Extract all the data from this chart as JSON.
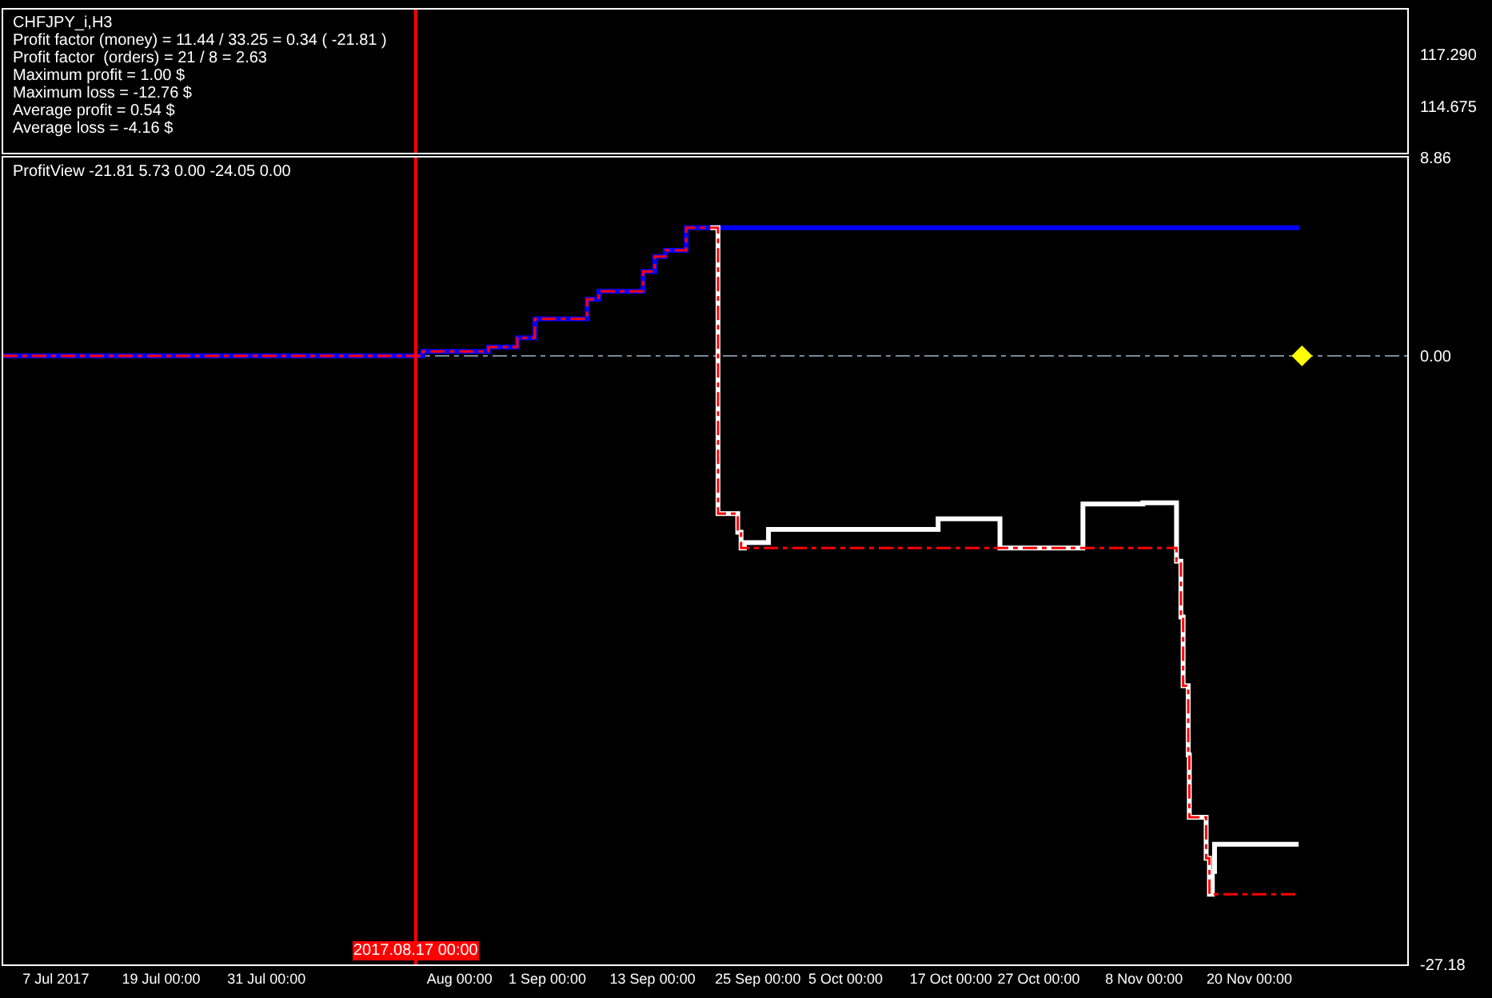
{
  "chart_data": [
    {
      "type": "line",
      "title": "CHFJPY_i,H3",
      "annotations": [
        "Profit factor (money) = 11.44 / 33.25 = 0.34 ( -21.81 )",
        "Profit factor  (orders) = 21 / 8 = 2.63",
        "Maximum profit = 1.00 $",
        "Maximum loss = -12.76 $",
        "Average profit = 0.54 $",
        "Average loss = -4.16 $"
      ],
      "ylim": [
        112.37,
        119.51
      ],
      "yticks": [
        {
          "value": 117.29,
          "label": "117.290"
        },
        114.675
      ],
      "xlim": [
        "2017-07-01T00:00",
        "2017-12-08T00:00"
      ],
      "tick_labels": "y",
      "ref_lines": [
        {
          "axis": "x",
          "value": "2017-08-17T00:00",
          "color": "#ff0000"
        }
      ]
    },
    {
      "type": "step",
      "title": "ProfitView -21.81 5.73 0.00 -24.05 0.00",
      "xlim": [
        "2017-07-01T00:00",
        "2017-12-08T00:00"
      ],
      "xticks": [
        {
          "value": "2017-07-07T00:00",
          "label": "7 Jul 2017"
        },
        {
          "value": "2017-07-19T00:00",
          "label": "19 Jul 00:00"
        },
        {
          "value": "2017-07-31T00:00",
          "label": "31 Jul 00:00"
        },
        {
          "value": "2017-08-22T00:00",
          "label": "Aug 00:00"
        },
        {
          "value": "2017-09-01T00:00",
          "label": "1 Sep 00:00"
        },
        {
          "value": "2017-09-13T00:00",
          "label": "13 Sep 00:00"
        },
        {
          "value": "2017-09-25T00:00",
          "label": "25 Sep 00:00"
        },
        {
          "value": "2017-10-05T00:00",
          "label": "5 Oct 00:00"
        },
        {
          "value": "2017-10-17T00:00",
          "label": "17 Oct 00:00"
        },
        {
          "value": "2017-10-27T00:00",
          "label": "27 Oct 00:00"
        },
        {
          "value": "2017-11-08T00:00",
          "label": "8 Nov 00:00"
        },
        {
          "value": "2017-11-20T00:00",
          "label": "20 Nov 00:00"
        }
      ],
      "ylim": [
        -27.18,
        8.86
      ],
      "yticks": [
        8.86,
        {
          "value": 0,
          "label": "0.00"
        },
        -27.18
      ],
      "ref_lines": [
        {
          "axis": "x",
          "value": "2017-08-17T00:00",
          "label": "2017.08.17 00:00",
          "color": "#ff0000"
        },
        {
          "axis": "y",
          "value": 0,
          "color": "#778899",
          "line_style": "dashed"
        }
      ],
      "series": [
        {
          "color": "#0000ff",
          "line_style": "solid",
          "x": [
            "2017-07-01T00:00",
            "2017-08-17T19:00",
            "2017-08-25T07:00",
            "2017-08-28T14:00",
            "2017-08-30T14:00",
            "2017-09-05T13:00",
            "2017-09-06T21:00",
            "2017-09-11T22:00",
            "2017-09-13T06:00",
            "2017-09-14T11:00",
            "2017-09-16T20:00",
            "2017-11-25T18:00"
          ],
          "values": [
            0,
            0.2,
            0.4,
            0.81,
            1.66,
            2.53,
            2.89,
            3.77,
            4.44,
            4.72,
            5.73,
            5.73
          ]
        },
        {
          "color": "#ffffff",
          "line_style": "solid",
          "x": [
            "2017-09-19T14:00",
            "2017-09-20T11:00",
            "2017-09-22T17:00",
            "2017-09-23T02:00",
            "2017-09-23T11:00",
            "2017-09-26T05:00",
            "2017-10-15T13:00",
            "2017-10-22T14:00",
            "2017-11-01T01:00",
            "2017-11-07T21:00",
            "2017-11-11T17:00",
            "2017-11-12T05:00",
            "2017-11-12T11:00",
            "2017-11-13T01:00",
            "2017-11-13T04:00",
            "2017-11-15T02:00",
            "2017-11-15T11:00",
            "2017-11-15T19:00",
            "2017-11-16T01:00",
            "2017-11-25T15:00"
          ],
          "values": [
            5.73,
            -7.04,
            -7.87,
            -8.58,
            -8.34,
            -7.75,
            -7.27,
            -8.58,
            -6.61,
            -6.56,
            -9.17,
            -11.66,
            -14.73,
            -17.82,
            -20.61,
            -22.44,
            -24.05,
            -23.03,
            -21.81,
            -21.81
          ]
        },
        {
          "color": "#ff0000",
          "line_style": "dashed",
          "x": [
            "2017-07-01T00:00",
            "2017-08-17T19:00",
            "2017-08-25T07:00",
            "2017-08-28T14:00",
            "2017-08-30T14:00",
            "2017-09-05T13:00",
            "2017-09-06T21:00",
            "2017-09-11T22:00",
            "2017-09-13T06:00",
            "2017-09-14T11:00",
            "2017-09-16T20:00",
            "2017-09-20T11:00",
            "2017-09-22T17:00",
            "2017-09-23T02:00",
            "2017-11-11T17:00",
            "2017-11-12T05:00",
            "2017-11-12T11:00",
            "2017-11-13T01:00",
            "2017-11-13T04:00",
            "2017-11-15T02:00",
            "2017-11-15T11:00",
            "2017-11-25T15:00"
          ],
          "values": [
            0,
            0.2,
            0.4,
            0.81,
            1.66,
            2.53,
            2.89,
            3.77,
            4.44,
            4.72,
            5.73,
            -7.04,
            -7.87,
            -8.58,
            -9.17,
            -11.66,
            -14.73,
            -17.82,
            -20.61,
            -22.44,
            -24.05,
            -24.05
          ]
        },
        {
          "type": "scatter",
          "color": "#ffff00",
          "marker": "diamond",
          "x": [
            "2017-11-26T00:00"
          ],
          "values": [
            0
          ]
        }
      ]
    }
  ]
}
